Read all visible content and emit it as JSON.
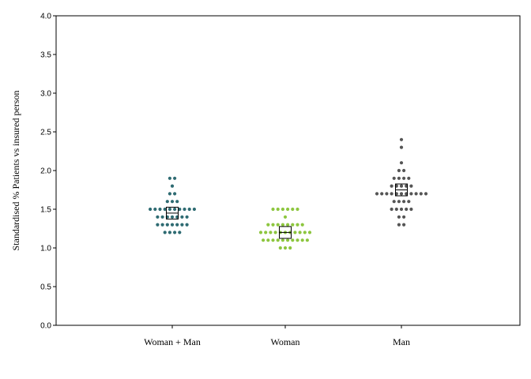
{
  "chart_data": {
    "type": "scatter",
    "subtype": "dot-plot",
    "title": "",
    "xlabel": "",
    "ylabel": "Standardised % Patients vs insured person",
    "ylim": [
      0,
      4.0
    ],
    "yticks": [
      0.0,
      0.5,
      1.0,
      1.5,
      2.0,
      2.5,
      3.0,
      3.5,
      4.0
    ],
    "ytick_labels": [
      "0.0",
      "0.5",
      "1.0",
      "1.5",
      "2.0",
      "2.5",
      "3.0",
      "3.5",
      "4.0"
    ],
    "grid": false,
    "legend": "none",
    "categories": [
      "Woman + Man",
      "Woman",
      "Man"
    ],
    "series": [
      {
        "category": "Woman + Man",
        "color": "#2e6b72",
        "mean": 1.45,
        "values": [
          1.9,
          1.9,
          1.8,
          1.7,
          1.7,
          1.6,
          1.6,
          1.6,
          1.5,
          1.5,
          1.5,
          1.5,
          1.5,
          1.5,
          1.5,
          1.5,
          1.5,
          1.5,
          1.4,
          1.4,
          1.4,
          1.4,
          1.4,
          1.4,
          1.4,
          1.3,
          1.3,
          1.3,
          1.3,
          1.3,
          1.3,
          1.3,
          1.2,
          1.2,
          1.2,
          1.2
        ]
      },
      {
        "category": "Woman",
        "color": "#8dc63f",
        "mean": 1.2,
        "values": [
          1.5,
          1.5,
          1.5,
          1.5,
          1.5,
          1.5,
          1.4,
          1.3,
          1.3,
          1.3,
          1.3,
          1.3,
          1.3,
          1.3,
          1.3,
          1.2,
          1.2,
          1.2,
          1.2,
          1.2,
          1.2,
          1.2,
          1.2,
          1.2,
          1.2,
          1.2,
          1.1,
          1.1,
          1.1,
          1.1,
          1.1,
          1.1,
          1.1,
          1.1,
          1.1,
          1.1,
          1.0,
          1.0,
          1.0
        ]
      },
      {
        "category": "Man",
        "color": "#555555",
        "mean": 1.75,
        "values": [
          2.4,
          2.3,
          2.1,
          2.0,
          2.0,
          1.9,
          1.9,
          1.9,
          1.9,
          1.8,
          1.8,
          1.8,
          1.8,
          1.8,
          1.7,
          1.7,
          1.7,
          1.7,
          1.7,
          1.7,
          1.7,
          1.7,
          1.7,
          1.7,
          1.7,
          1.6,
          1.6,
          1.6,
          1.6,
          1.5,
          1.5,
          1.5,
          1.5,
          1.5,
          1.4,
          1.4,
          1.3,
          1.3
        ]
      }
    ]
  }
}
